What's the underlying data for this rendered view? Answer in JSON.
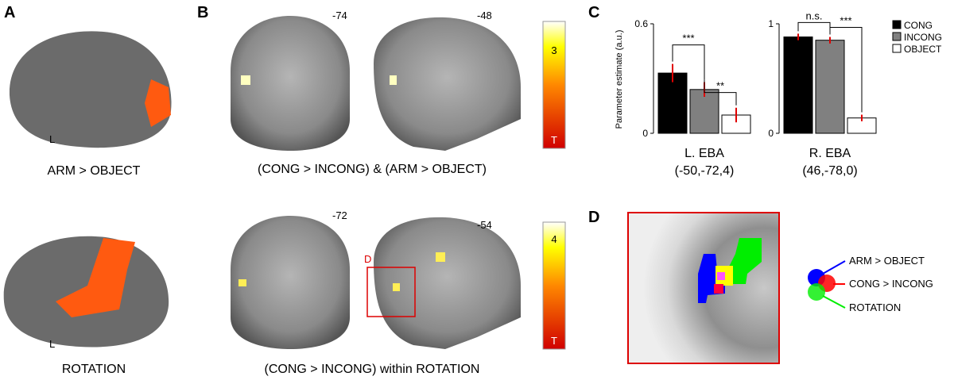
{
  "panels": {
    "a": "A",
    "b": "B",
    "c": "C",
    "d": "D"
  },
  "panel_a": {
    "top_hemisphere": "L",
    "top_caption": "ARM > OBJECT",
    "bottom_hemisphere": "L",
    "bottom_caption": "ROTATION"
  },
  "panel_b": {
    "top_slices": [
      "-74",
      "-48"
    ],
    "top_colorbar": [
      "3",
      "T"
    ],
    "top_caption": "(CONG > INCONG) & (ARM > OBJECT)",
    "bottom_slices": [
      "-72",
      "-54"
    ],
    "bottom_colorbar": [
      "4",
      "T"
    ],
    "bottom_caption": "(CONG > INCONG) within ROTATION",
    "inset_label": "D"
  },
  "panel_d": {
    "legend": [
      "ARM > OBJECT",
      "CONG > INCONG",
      "ROTATION"
    ]
  },
  "legend": [
    {
      "name": "CONG",
      "color": "#000000"
    },
    {
      "name": "INCONG",
      "color": "#808080"
    },
    {
      "name": "OBJECT",
      "color": "#ffffff"
    }
  ],
  "chart_data": [
    {
      "type": "bar",
      "title": "L. EBA",
      "subtitle": "(-50,-72,4)",
      "ylabel": "Parameter estimate (a.u.)",
      "ylim": [
        0,
        0.6
      ],
      "yticks": [
        0,
        0.6
      ],
      "values": [
        0.33,
        0.24,
        0.1
      ],
      "errors": [
        0.05,
        0.04,
        0.04
      ],
      "annotations": [
        "***",
        "**"
      ]
    },
    {
      "type": "bar",
      "title": "R. EBA",
      "subtitle": "(46,-78,0)",
      "ylim": [
        0,
        1
      ],
      "yticks": [
        0,
        1
      ],
      "values": [
        0.88,
        0.85,
        0.14
      ],
      "errors": [
        0.03,
        0.03,
        0.03
      ],
      "annotations": [
        "n.s.",
        "***"
      ]
    }
  ]
}
